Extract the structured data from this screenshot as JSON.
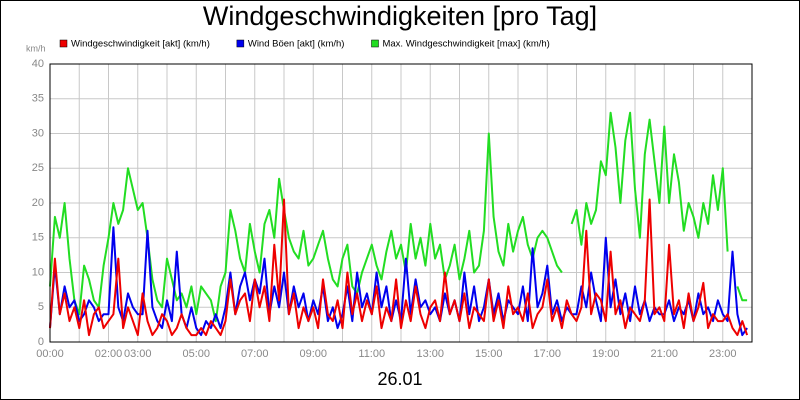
{
  "chart_data": {
    "type": "line",
    "title": "Windgeschwindigkeiten [pro Tag]",
    "y_label": "km/h",
    "x_label": "26.01",
    "xlim": [
      0,
      1440
    ],
    "ylim": [
      0,
      40
    ],
    "yticks": [
      0,
      5,
      10,
      15,
      20,
      25,
      30,
      35,
      40
    ],
    "xticks": [
      {
        "value": 0,
        "label": "00:00"
      },
      {
        "value": 60,
        "label": null
      },
      {
        "value": 120,
        "label": "02:00"
      },
      {
        "value": 180,
        "label": "03:00"
      },
      {
        "value": 240,
        "label": null
      },
      {
        "value": 300,
        "label": "05:00"
      },
      {
        "value": 360,
        "label": null
      },
      {
        "value": 420,
        "label": "07:00"
      },
      {
        "value": 480,
        "label": null
      },
      {
        "value": 540,
        "label": "09:00"
      },
      {
        "value": 600,
        "label": null
      },
      {
        "value": 660,
        "label": "11:00"
      },
      {
        "value": 720,
        "label": null
      },
      {
        "value": 780,
        "label": "13:00"
      },
      {
        "value": 840,
        "label": null
      },
      {
        "value": 900,
        "label": "15:00"
      },
      {
        "value": 960,
        "label": null
      },
      {
        "value": 1020,
        "label": "17:00"
      },
      {
        "value": 1080,
        "label": null
      },
      {
        "value": 1140,
        "label": "19:00"
      },
      {
        "value": 1200,
        "label": null
      },
      {
        "value": 1260,
        "label": "21:00"
      },
      {
        "value": 1320,
        "label": null
      },
      {
        "value": 1380,
        "label": "23:00"
      }
    ],
    "grid": true,
    "x": [
      0,
      10,
      20,
      30,
      40,
      50,
      60,
      70,
      80,
      90,
      100,
      110,
      120,
      130,
      140,
      150,
      160,
      170,
      180,
      190,
      200,
      210,
      220,
      230,
      240,
      250,
      260,
      270,
      280,
      290,
      300,
      310,
      320,
      330,
      340,
      350,
      360,
      370,
      380,
      390,
      400,
      410,
      420,
      430,
      440,
      450,
      460,
      470,
      480,
      490,
      500,
      510,
      520,
      530,
      540,
      550,
      560,
      570,
      580,
      590,
      600,
      610,
      620,
      630,
      640,
      650,
      660,
      670,
      680,
      690,
      700,
      710,
      720,
      730,
      740,
      750,
      760,
      770,
      780,
      790,
      800,
      810,
      820,
      830,
      840,
      850,
      860,
      870,
      880,
      890,
      900,
      910,
      920,
      930,
      940,
      950,
      960,
      970,
      980,
      990,
      1000,
      1010,
      1020,
      1030,
      1040,
      1050,
      1060,
      1070,
      1080,
      1090,
      1100,
      1110,
      1120,
      1130,
      1140,
      1150,
      1160,
      1170,
      1180,
      1190,
      1200,
      1210,
      1220,
      1230,
      1240,
      1250,
      1260,
      1270,
      1280,
      1290,
      1300,
      1310,
      1320,
      1330,
      1340,
      1350,
      1360,
      1370,
      1380,
      1390,
      1400,
      1410,
      1420,
      1430
    ],
    "series": [
      {
        "name": "Max. Windgeschwindigkeit [max] (km/h)",
        "color": "#22dd22",
        "values": [
          8,
          18,
          15,
          20,
          12,
          6,
          4,
          11,
          9,
          6,
          5,
          11,
          15,
          20,
          17,
          19,
          25,
          22,
          19,
          20,
          15,
          9,
          6,
          5,
          12,
          9,
          6,
          7,
          5,
          8,
          4,
          8,
          7,
          6,
          3,
          8,
          10,
          19,
          16,
          12,
          10,
          17,
          13,
          10,
          17,
          19,
          15,
          23.5,
          19,
          15,
          13,
          12,
          16,
          11,
          12,
          14,
          16,
          12,
          9,
          8,
          12,
          14,
          8,
          7,
          10,
          12,
          14,
          11,
          9,
          13,
          16,
          12,
          14,
          10,
          17,
          12,
          15,
          11,
          17,
          12,
          14,
          9,
          11,
          14,
          9,
          12,
          16,
          10,
          11,
          16,
          30,
          18,
          13,
          11,
          17,
          13,
          16,
          18,
          14,
          12,
          15,
          16,
          15,
          13,
          11,
          10,
          null,
          17,
          19,
          14,
          20,
          17,
          19,
          26,
          24,
          33,
          28,
          20,
          29,
          33,
          22,
          15,
          27,
          32,
          26,
          20,
          31,
          20,
          27,
          23,
          16,
          20,
          18,
          15,
          20,
          17,
          24,
          19,
          25,
          13,
          null,
          8,
          6,
          6
        ]
      },
      {
        "name": "Wind Böen [akt] (km/h)",
        "color": "#0000ee",
        "values": [
          2,
          11,
          4,
          8,
          5,
          6,
          3,
          4,
          6,
          5,
          3,
          4,
          4,
          16.5,
          5,
          3,
          7,
          5,
          4,
          4,
          16,
          5,
          3,
          2,
          6,
          3,
          13,
          4,
          2,
          5,
          2,
          1,
          3,
          2,
          4,
          2,
          5,
          10,
          4,
          8,
          10,
          6,
          9,
          7,
          12,
          4,
          8,
          5,
          10,
          4,
          8,
          5,
          7,
          3,
          6,
          4,
          8,
          3,
          5,
          2,
          4,
          8,
          3,
          10,
          5,
          7,
          4,
          10,
          5,
          8,
          3,
          6,
          3,
          12,
          4,
          9,
          5,
          6,
          4,
          5,
          3,
          7,
          4,
          6,
          3,
          10,
          4,
          8,
          3,
          5,
          9,
          4,
          7,
          3,
          6,
          5,
          4,
          8,
          3,
          13.5,
          5,
          7,
          11,
          4,
          6,
          3,
          5,
          4,
          4,
          8,
          5,
          10,
          6,
          3,
          15,
          5,
          9,
          4,
          7,
          3,
          8,
          4,
          6,
          3,
          5,
          4,
          4,
          6,
          3,
          5,
          4,
          6,
          3,
          7,
          4,
          5,
          3,
          6,
          4,
          3,
          13,
          4,
          1,
          2
        ]
      },
      {
        "name": "Windgeschwindigkeit [akt] (km/h)",
        "color": "#ee0000",
        "values": [
          2,
          12,
          4,
          7,
          3,
          5,
          2,
          6,
          1,
          4,
          5,
          2,
          3,
          4,
          12,
          2,
          5,
          3,
          1,
          7,
          3,
          1,
          2,
          4,
          3,
          1,
          2,
          4,
          2,
          1,
          1,
          2,
          1,
          3,
          2,
          1,
          3,
          9,
          4,
          6,
          7,
          3,
          9,
          5,
          8,
          3,
          14,
          6,
          20.5,
          4,
          7,
          2,
          5,
          3,
          5,
          2,
          9,
          4,
          3,
          6,
          2,
          10,
          4,
          7,
          3,
          6,
          4,
          8,
          2,
          5,
          3,
          9,
          2,
          6,
          3,
          8,
          4,
          2,
          5,
          6,
          3,
          10,
          4,
          6,
          3,
          7,
          2,
          5,
          4,
          3,
          9,
          3,
          6,
          2,
          8,
          4,
          5,
          3,
          7,
          2,
          4,
          5,
          9,
          3,
          5,
          2,
          6,
          4,
          3,
          5,
          16,
          4,
          7,
          6,
          3,
          13,
          4,
          6,
          2,
          5,
          4,
          3,
          6,
          20.5,
          4,
          5,
          3,
          14,
          4,
          6,
          2,
          7,
          3,
          5,
          8.5,
          2,
          4,
          3,
          3,
          4,
          2,
          1,
          3,
          1
        ]
      }
    ],
    "legend_order": [
      2,
      1,
      0
    ]
  }
}
